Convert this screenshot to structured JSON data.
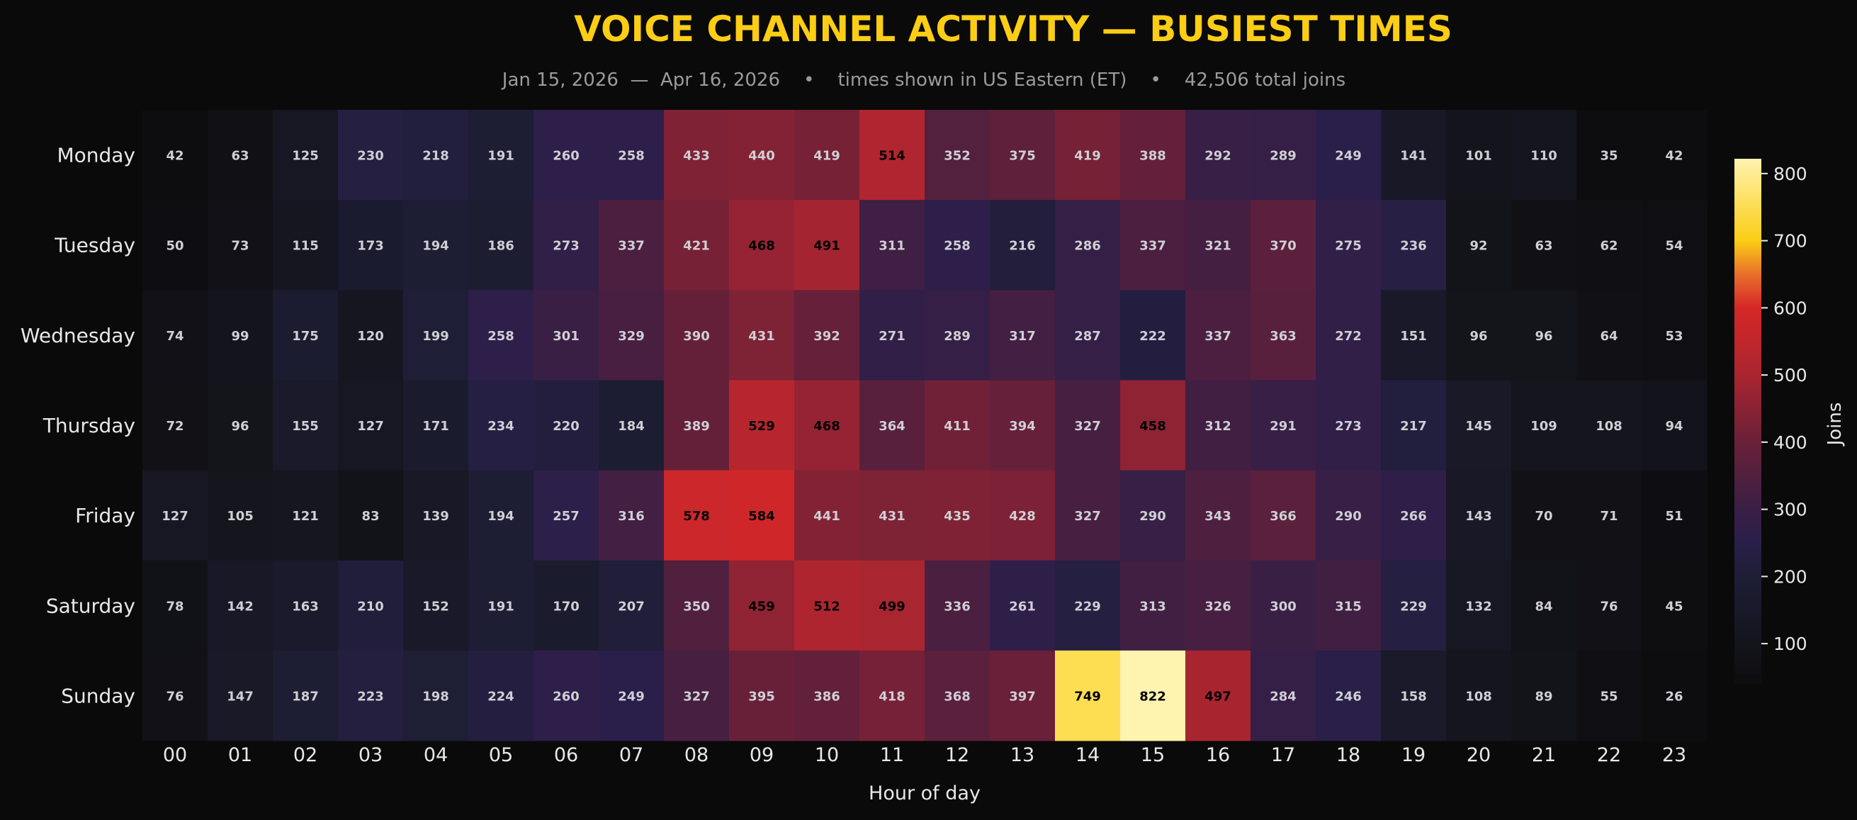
{
  "chart_data": {
    "type": "heatmap",
    "title": "VOICE CHANNEL ACTIVITY — BUSIEST TIMES",
    "subtitle": "Jan 15, 2026  —  Apr 16, 2026    •    times shown in US Eastern (ET)    •    42,506 total joins",
    "xlabel": "Hour of day",
    "ylabel": "",
    "colorbar_label": "Joins",
    "colorbar_ticks": [
      100,
      200,
      300,
      400,
      500,
      600,
      700,
      800
    ],
    "colorbar_range": [
      40,
      822
    ],
    "hours": [
      "00",
      "01",
      "02",
      "03",
      "04",
      "05",
      "06",
      "07",
      "08",
      "09",
      "10",
      "11",
      "12",
      "13",
      "14",
      "15",
      "16",
      "17",
      "18",
      "19",
      "20",
      "21",
      "22",
      "23"
    ],
    "days": [
      "Monday",
      "Tuesday",
      "Wednesday",
      "Thursday",
      "Friday",
      "Saturday",
      "Sunday"
    ],
    "values": [
      [
        42,
        63,
        125,
        230,
        218,
        191,
        260,
        258,
        433,
        440,
        419,
        514,
        352,
        375,
        419,
        388,
        292,
        289,
        249,
        141,
        101,
        110,
        35,
        42
      ],
      [
        50,
        73,
        115,
        173,
        194,
        186,
        273,
        337,
        421,
        468,
        491,
        311,
        258,
        216,
        286,
        337,
        321,
        370,
        275,
        236,
        92,
        63,
        62,
        54
      ],
      [
        74,
        99,
        175,
        120,
        199,
        258,
        301,
        329,
        390,
        431,
        392,
        271,
        289,
        317,
        287,
        222,
        337,
        363,
        272,
        151,
        96,
        96,
        64,
        53
      ],
      [
        72,
        96,
        155,
        127,
        171,
        234,
        220,
        184,
        389,
        529,
        468,
        364,
        411,
        394,
        327,
        458,
        312,
        291,
        273,
        217,
        145,
        109,
        108,
        94
      ],
      [
        127,
        105,
        121,
        83,
        139,
        194,
        257,
        316,
        578,
        584,
        441,
        431,
        435,
        428,
        327,
        290,
        343,
        366,
        290,
        266,
        143,
        70,
        71,
        51
      ],
      [
        78,
        142,
        163,
        210,
        152,
        191,
        170,
        207,
        350,
        459,
        512,
        499,
        336,
        261,
        229,
        313,
        326,
        300,
        315,
        229,
        132,
        84,
        76,
        45
      ],
      [
        76,
        147,
        187,
        223,
        198,
        224,
        260,
        249,
        327,
        395,
        386,
        418,
        368,
        397,
        749,
        822,
        497,
        284,
        246,
        158,
        108,
        89,
        55,
        26
      ]
    ],
    "colormap": [
      "#0d0d10",
      "#14141c",
      "#1e1e36",
      "#2a1f4a",
      "#3a1f45",
      "#6a2038",
      "#aa2530",
      "#d62728",
      "#e8702a",
      "#fbcd14",
      "#fde060",
      "#fff3b0"
    ],
    "colors": {
      "background": "#0a0a0a",
      "title": "#fbcd14",
      "subtitle": "#9a9aa0",
      "label": "#e8e8e8",
      "cell_text_light": "#cfcfd4",
      "cell_text_dark": "#000000"
    }
  }
}
